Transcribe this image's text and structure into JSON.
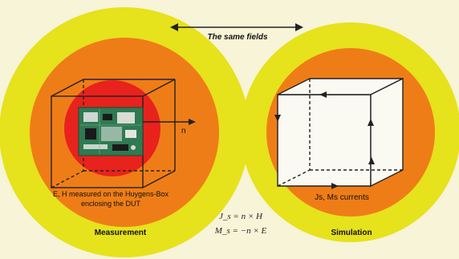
{
  "header": {
    "arrow_label": "The same fields"
  },
  "left_panel": {
    "normal_label": "n",
    "caption_line1": "E, H measured on the Huygens-Box",
    "caption_line2": "enclosing the DUT",
    "title": "Measurement"
  },
  "right_panel": {
    "currents_label": "Js, Ms currents",
    "title": "Simulation"
  },
  "equations": {
    "line1": "J_s = n × H",
    "line2": "M_s = −n × E"
  },
  "colors": {
    "background": "#f7f4d7",
    "outer_ring": "#e6e21c",
    "middle_ring": "#ef7d17",
    "inner_ring": "#e8221d",
    "box_face": "#fbfaf2"
  },
  "icons": {
    "dut": "pcb-board-icon"
  }
}
